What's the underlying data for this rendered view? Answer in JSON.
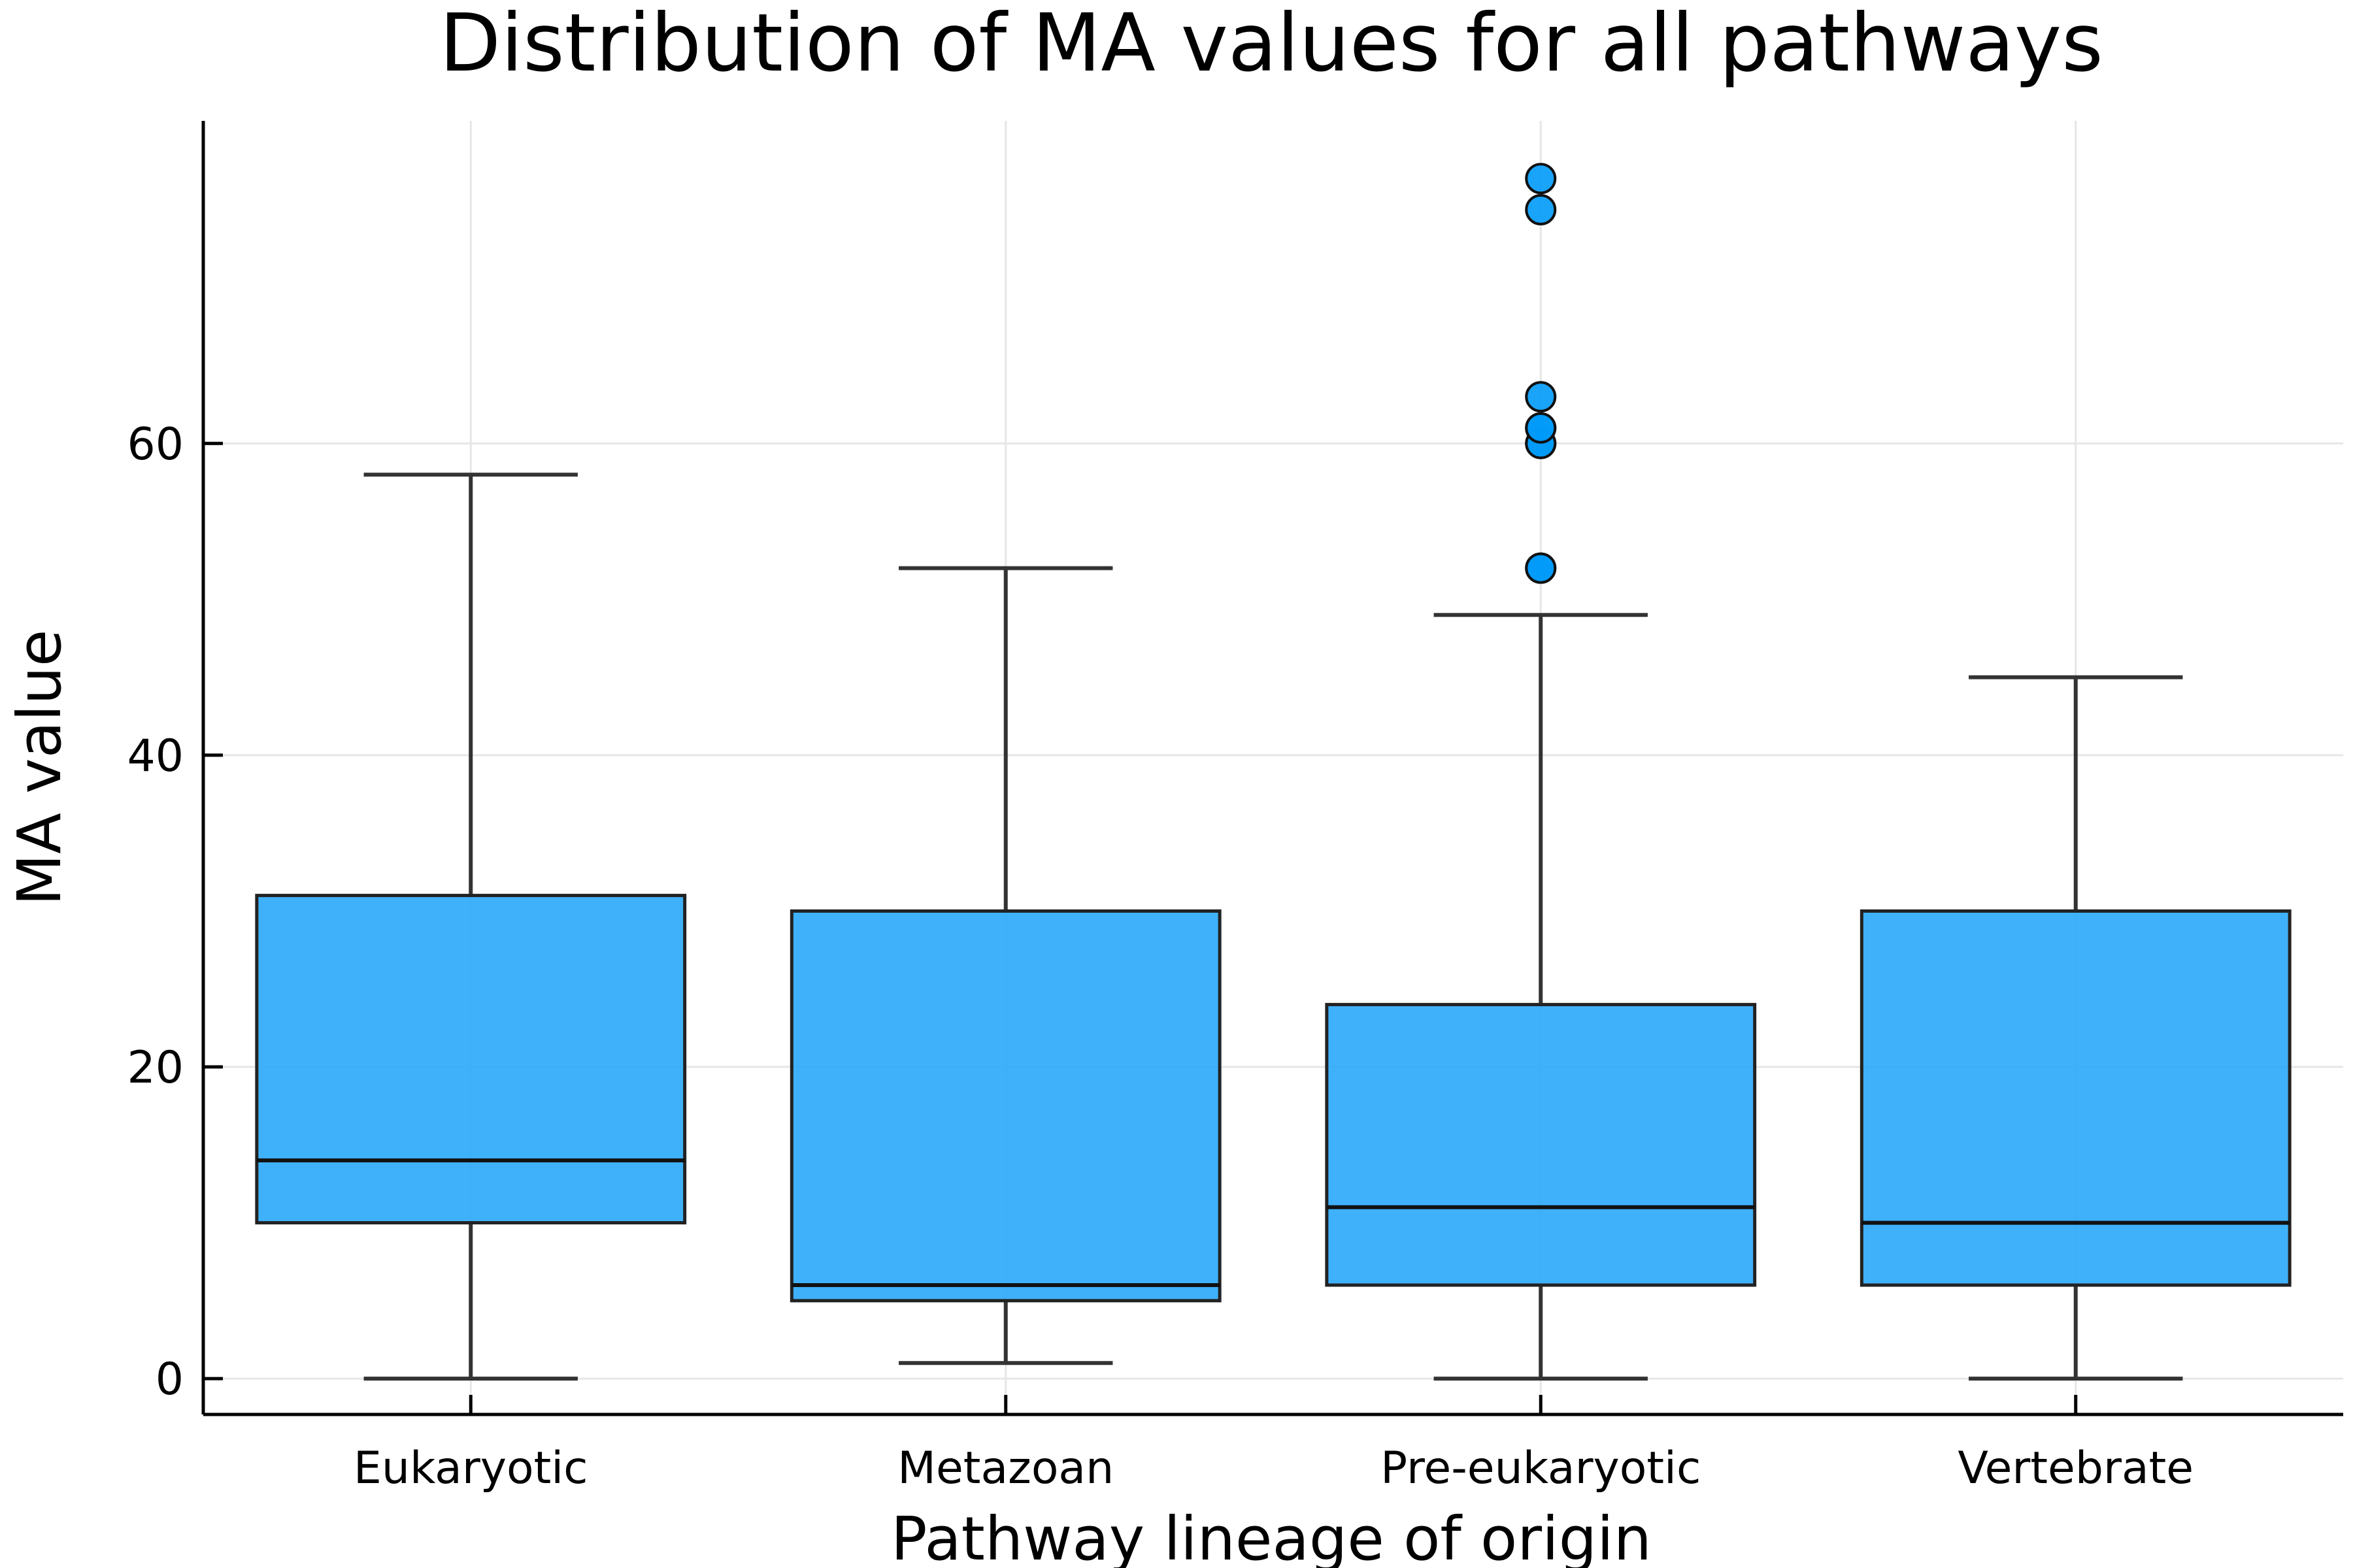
{
  "chart_data": {
    "type": "box",
    "title": "Distribution of MA values for all pathways",
    "xlabel": "Pathway lineage of origin",
    "ylabel": "MA value",
    "categories": [
      "Eukaryotic",
      "Metazoan",
      "Pre-eukaryotic",
      "Vertebrate"
    ],
    "yticks": [
      0,
      20,
      40,
      60
    ],
    "ylim": [
      -2.3,
      80.7
    ],
    "grid": true,
    "legend": "none",
    "boxes": [
      {
        "category": "Eukaryotic",
        "whisker_low": 0,
        "q1": 10,
        "median": 14,
        "q3": 31,
        "whisker_high": 58,
        "outliers": []
      },
      {
        "category": "Metazoan",
        "whisker_low": 1,
        "q1": 5,
        "median": 6,
        "q3": 30,
        "whisker_high": 52,
        "outliers": []
      },
      {
        "category": "Pre-eukaryotic",
        "whisker_low": 0,
        "q1": 6,
        "median": 11,
        "q3": 24,
        "whisker_high": 49,
        "outliers": [
          52,
          52,
          60,
          60,
          61,
          61,
          63,
          75,
          77
        ]
      },
      {
        "category": "Vertebrate",
        "whisker_low": 0,
        "q1": 6,
        "median": 10,
        "q3": 30,
        "whisker_high": 45,
        "outliers": []
      }
    ],
    "colors": {
      "box_fill": "#2aa9fa",
      "outlier_fill": "#009af9",
      "edge": "#222222"
    }
  }
}
